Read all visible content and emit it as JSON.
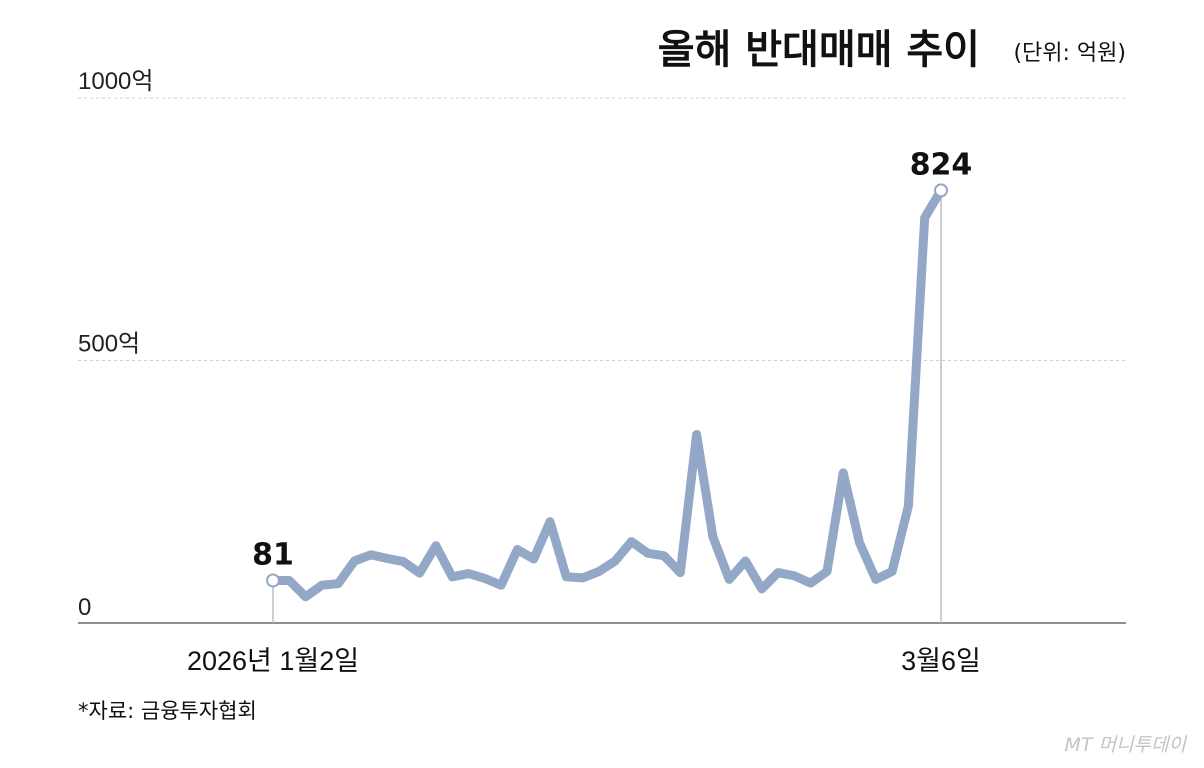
{
  "chart_data": {
    "type": "line",
    "title": "올해 반대매매 추이",
    "unit": "(단위: 억원)",
    "ylim": [
      0,
      1000
    ],
    "y_ticks": [
      {
        "value": 0,
        "label": "0"
      },
      {
        "value": 500,
        "label": "500억"
      },
      {
        "value": 1000,
        "label": "1000억"
      }
    ],
    "x_labels": [
      {
        "index": 0,
        "label": "2026년 1월2일"
      },
      {
        "index": 45,
        "label": "3월6일"
      }
    ],
    "series": [
      {
        "color": "#93a8c7",
        "values": [
          81,
          81,
          50,
          72,
          75,
          118,
          130,
          123,
          117,
          95,
          147,
          88,
          94,
          85,
          72,
          140,
          122,
          193,
          88,
          86,
          98,
          118,
          155,
          133,
          128,
          96,
          359,
          164,
          83,
          118,
          65,
          96,
          90,
          76,
          98,
          286,
          153,
          83,
          98,
          223,
          772,
          824
        ]
      }
    ],
    "data_labels": [
      {
        "index": 0,
        "text": "81"
      },
      {
        "index": 41,
        "text": "824"
      }
    ],
    "grid": true
  },
  "source": "*자료: 금융투자협회",
  "watermark": "MT 머니투데이"
}
